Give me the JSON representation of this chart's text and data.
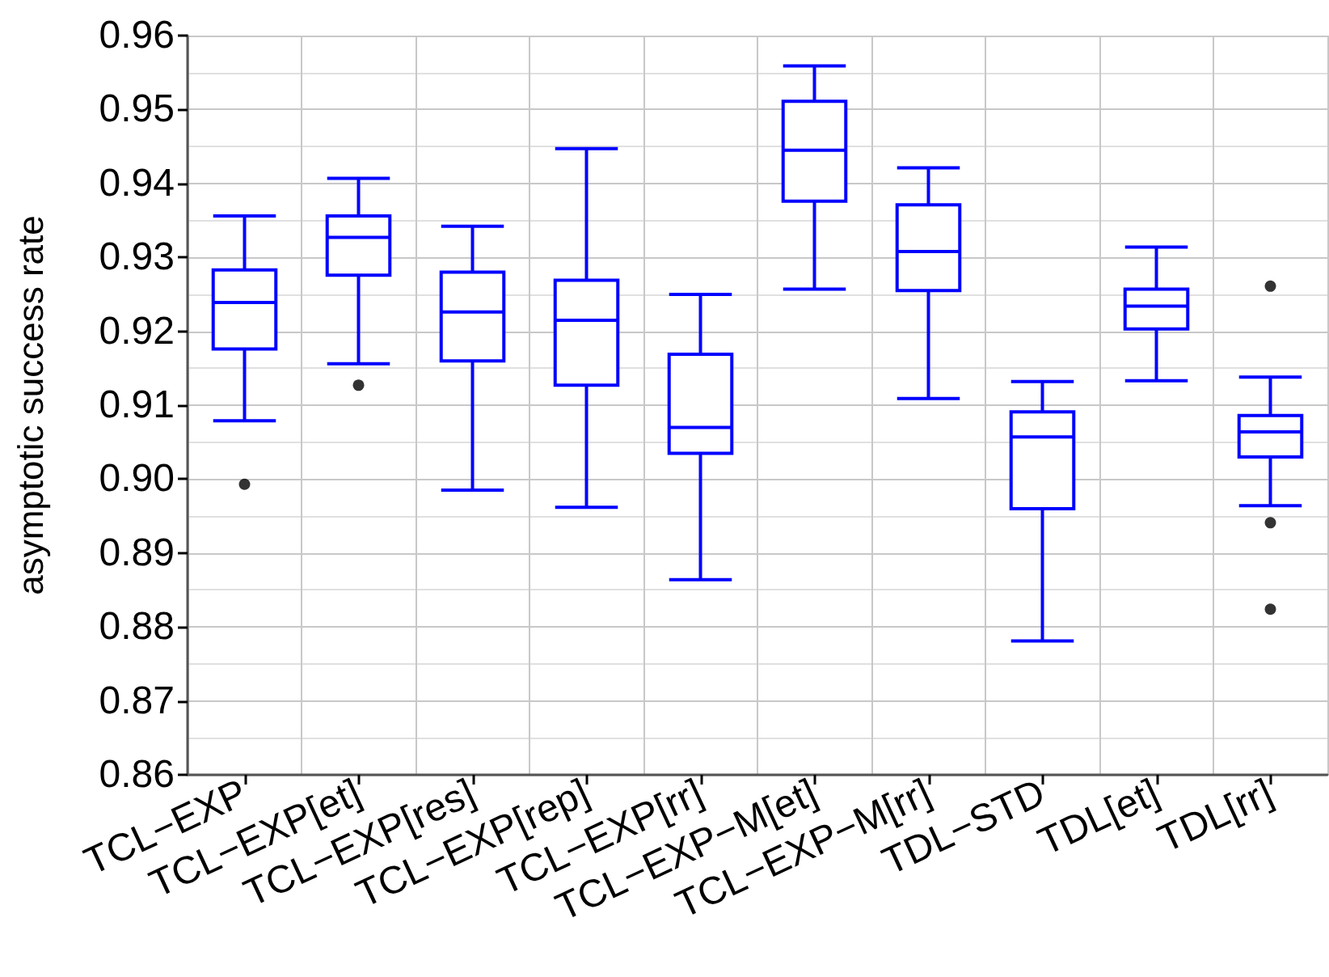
{
  "chart_data": {
    "type": "box",
    "ylabel": "asymptotic success rate",
    "categories": [
      "TCL−EXP",
      "TCL−EXP[et]",
      "TCL−EXP[res]",
      "TCL−EXP[rep]",
      "TCL−EXP[rr]",
      "TCL−EXP−M[et]",
      "TCL−EXP−M[rr]",
      "TDL−STD",
      "TDL[et]",
      "TDL[rr]"
    ],
    "boxes": [
      {
        "low": 0.9079,
        "q1": 0.9176,
        "median": 0.9239,
        "q3": 0.9283,
        "high": 0.9356,
        "outliers": [
          0.8993
        ]
      },
      {
        "low": 0.9156,
        "q1": 0.9276,
        "median": 0.9327,
        "q3": 0.9356,
        "high": 0.9407,
        "outliers": [
          0.9127
        ]
      },
      {
        "low": 0.8985,
        "q1": 0.916,
        "median": 0.9226,
        "q3": 0.928,
        "high": 0.9342
      },
      {
        "low": 0.8962,
        "q1": 0.9127,
        "median": 0.9215,
        "q3": 0.9269,
        "high": 0.9447
      },
      {
        "low": 0.8864,
        "q1": 0.9035,
        "median": 0.907,
        "q3": 0.9169,
        "high": 0.925
      },
      {
        "low": 0.9257,
        "q1": 0.9376,
        "median": 0.9445,
        "q3": 0.9511,
        "high": 0.9559
      },
      {
        "low": 0.9109,
        "q1": 0.9255,
        "median": 0.9308,
        "q3": 0.9371,
        "high": 0.9421
      },
      {
        "low": 0.8781,
        "q1": 0.896,
        "median": 0.9057,
        "q3": 0.9091,
        "high": 0.9132
      },
      {
        "low": 0.9133,
        "q1": 0.9203,
        "median": 0.9234,
        "q3": 0.9257,
        "high": 0.9314
      },
      {
        "low": 0.8964,
        "q1": 0.903,
        "median": 0.9064,
        "q3": 0.9086,
        "high": 0.9138,
        "outliers": [
          0.9261,
          0.8941,
          0.8824
        ]
      }
    ],
    "color": "#0000ff",
    "ylim": [
      0.86,
      0.96
    ],
    "yticks": [
      0.86,
      0.87,
      0.88,
      0.89,
      {
        "value": 0.9,
        "label": "0.90"
      },
      0.91,
      0.92,
      0.93,
      0.94,
      0.95,
      0.96
    ],
    "grid": true
  }
}
